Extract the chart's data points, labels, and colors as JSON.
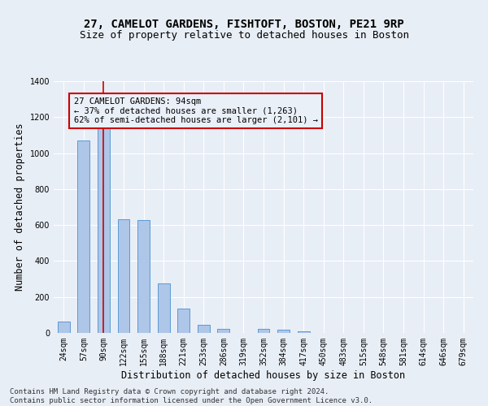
{
  "title": "27, CAMELOT GARDENS, FISHTOFT, BOSTON, PE21 9RP",
  "subtitle": "Size of property relative to detached houses in Boston",
  "xlabel": "Distribution of detached houses by size in Boston",
  "ylabel": "Number of detached properties",
  "footer_line1": "Contains HM Land Registry data © Crown copyright and database right 2024.",
  "footer_line2": "Contains public sector information licensed under the Open Government Licence v3.0.",
  "categories": [
    "24sqm",
    "57sqm",
    "90sqm",
    "122sqm",
    "155sqm",
    "188sqm",
    "221sqm",
    "253sqm",
    "286sqm",
    "319sqm",
    "352sqm",
    "384sqm",
    "417sqm",
    "450sqm",
    "483sqm",
    "515sqm",
    "548sqm",
    "581sqm",
    "614sqm",
    "646sqm",
    "679sqm"
  ],
  "values": [
    62,
    1070,
    1160,
    632,
    630,
    275,
    135,
    45,
    22,
    0,
    22,
    20,
    10,
    0,
    0,
    0,
    0,
    0,
    0,
    0,
    0
  ],
  "bar_color": "#aec6e8",
  "bar_edge_color": "#5b9bd5",
  "highlight_bar_index": 2,
  "highlight_line_color": "#cc0000",
  "annotation_text_line1": "27 CAMELOT GARDENS: 94sqm",
  "annotation_text_line2": "← 37% of detached houses are smaller (1,263)",
  "annotation_text_line3": "62% of semi-detached houses are larger (2,101) →",
  "annotation_box_facecolor": "#eaf0f8",
  "annotation_box_edgecolor": "#cc0000",
  "ylim": [
    0,
    1400
  ],
  "yticks": [
    0,
    200,
    400,
    600,
    800,
    1000,
    1200,
    1400
  ],
  "background_color": "#e8eef6",
  "grid_color": "#ffffff",
  "title_fontsize": 10,
  "subtitle_fontsize": 9,
  "axis_label_fontsize": 8.5,
  "tick_fontsize": 7,
  "annotation_fontsize": 7.5,
  "footer_fontsize": 6.5
}
